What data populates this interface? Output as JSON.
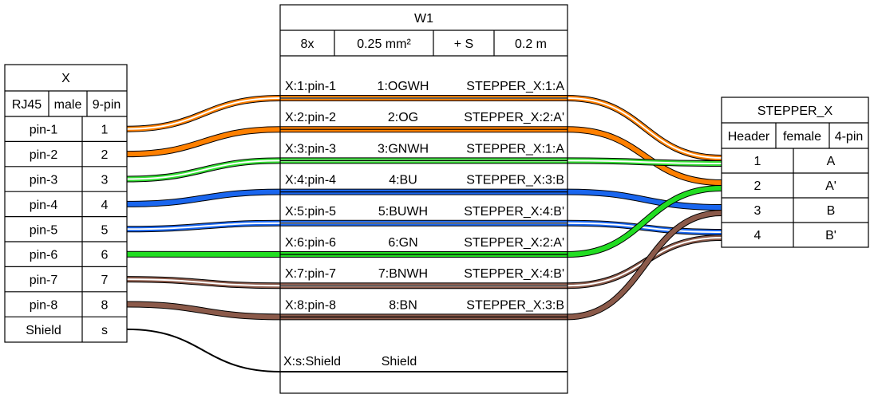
{
  "connector_x": {
    "title": "X",
    "attrs": [
      "RJ45",
      "male",
      "9-pin"
    ],
    "pins": [
      {
        "label": "pin-1",
        "num": "1"
      },
      {
        "label": "pin-2",
        "num": "2"
      },
      {
        "label": "pin-3",
        "num": "3"
      },
      {
        "label": "pin-4",
        "num": "4"
      },
      {
        "label": "pin-5",
        "num": "5"
      },
      {
        "label": "pin-6",
        "num": "6"
      },
      {
        "label": "pin-7",
        "num": "7"
      },
      {
        "label": "pin-8",
        "num": "8"
      },
      {
        "label": "Shield",
        "num": "s"
      }
    ]
  },
  "cable_w1": {
    "title": "W1",
    "attrs": [
      "8x",
      "0.25 mm²",
      "+ S",
      "0.2 m"
    ],
    "wires": [
      {
        "from": "X:1:pin-1",
        "id": "1:OGWH",
        "to": "STEPPER_X:1:A",
        "color": "#ff8000",
        "stripe": "#ffffff",
        "to_pin": 0
      },
      {
        "from": "X:2:pin-2",
        "id": "2:OG",
        "to": "STEPPER_X:2:A'",
        "color": "#ff8000",
        "stripe": "",
        "to_pin": 1
      },
      {
        "from": "X:3:pin-3",
        "id": "3:GNWH",
        "to": "STEPPER_X:1:A",
        "color": "#33dd33",
        "stripe": "#ffffff",
        "to_pin": 0
      },
      {
        "from": "X:4:pin-4",
        "id": "4:BU",
        "to": "STEPPER_X:3:B",
        "color": "#1a66ee",
        "stripe": "",
        "to_pin": 2
      },
      {
        "from": "X:5:pin-5",
        "id": "5:BUWH",
        "to": "STEPPER_X:4:B'",
        "color": "#1a66ee",
        "stripe": "#ffffff",
        "to_pin": 3
      },
      {
        "from": "X:6:pin-6",
        "id": "6:GN",
        "to": "STEPPER_X:2:A'",
        "color": "#22dd22",
        "stripe": "",
        "to_pin": 1
      },
      {
        "from": "X:7:pin-7",
        "id": "7:BNWH",
        "to": "STEPPER_X:4:B'",
        "color": "#8b5a4a",
        "stripe": "#ffffff",
        "to_pin": 3
      },
      {
        "from": "X:8:pin-8",
        "id": "8:BN",
        "to": "STEPPER_X:3:B",
        "color": "#8b5a4a",
        "stripe": "",
        "to_pin": 2
      }
    ],
    "shield": {
      "from": "X:s:Shield",
      "label": "Shield"
    }
  },
  "connector_stepper": {
    "title": "STEPPER_X",
    "attrs": [
      "Header",
      "female",
      "4-pin"
    ],
    "pins": [
      {
        "num": "1",
        "label": "A"
      },
      {
        "num": "2",
        "label": "A'"
      },
      {
        "num": "3",
        "label": "B"
      },
      {
        "num": "4",
        "label": "B'"
      }
    ]
  }
}
